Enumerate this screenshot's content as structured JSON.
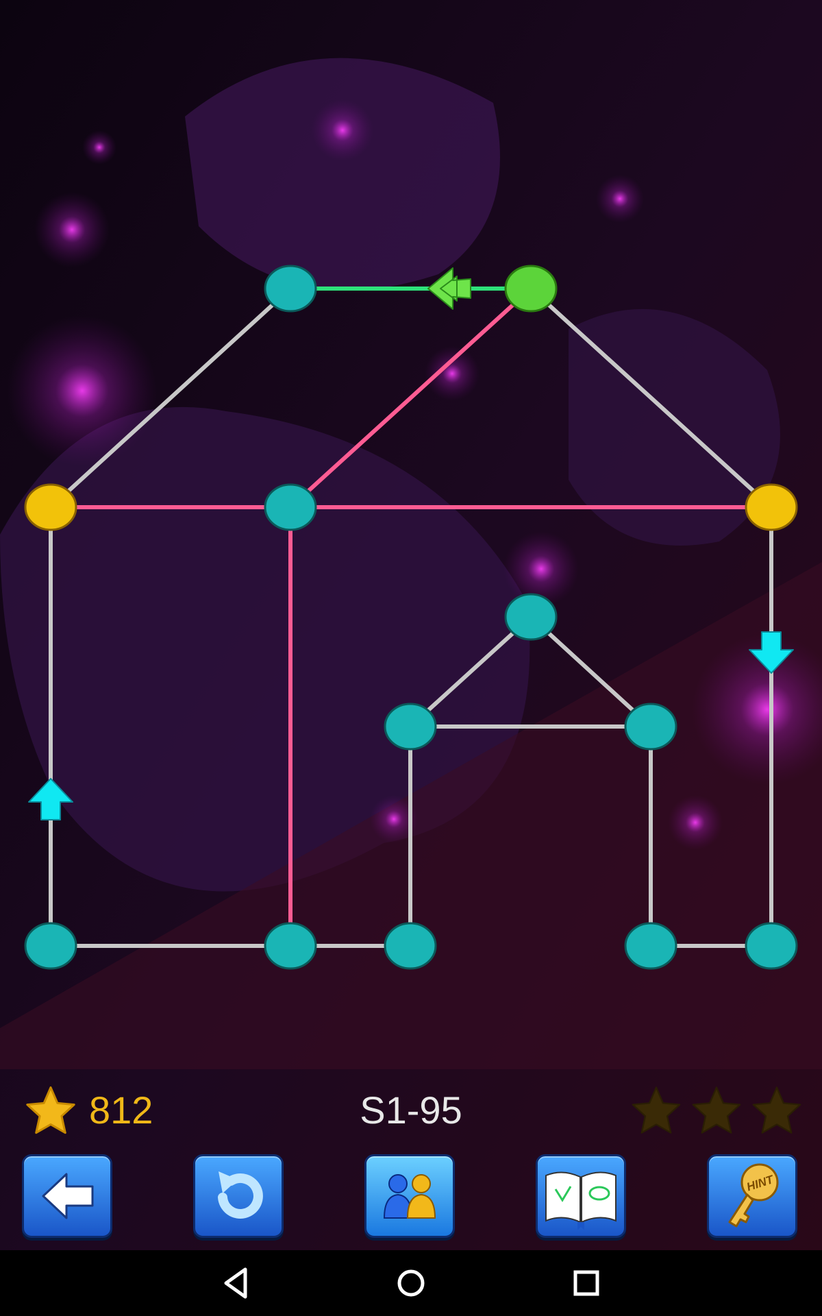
{
  "colors": {
    "node_default": "#1ab5b5",
    "node_yellow": "#f2c20a",
    "node_green": "#5cd43a",
    "edge_default": "#c8c8c8",
    "edge_pink": "#ff5c93",
    "edge_green": "#2ee27a",
    "arrow_cyan": "#10e8f2",
    "arrow_green": "#6ee44a",
    "star_gold": "#f2b81a",
    "star_empty": "#3a2a06"
  },
  "puzzle": {
    "nodes": [
      {
        "id": "n1",
        "color": "teal"
      },
      {
        "id": "n2",
        "color": "green"
      },
      {
        "id": "n3",
        "color": "yellow"
      },
      {
        "id": "n4",
        "color": "teal"
      },
      {
        "id": "n5",
        "color": "yellow"
      },
      {
        "id": "n6",
        "color": "teal"
      },
      {
        "id": "n7",
        "color": "teal"
      },
      {
        "id": "n8",
        "color": "teal"
      },
      {
        "id": "n9",
        "color": "teal"
      },
      {
        "id": "n10",
        "color": "teal"
      },
      {
        "id": "n11",
        "color": "teal"
      },
      {
        "id": "n12",
        "color": "teal"
      },
      {
        "id": "n13",
        "color": "teal"
      }
    ],
    "edges": [
      {
        "from": "n1",
        "to": "n2",
        "state": "green"
      },
      {
        "from": "n1",
        "to": "n3",
        "state": "default"
      },
      {
        "from": "n2",
        "to": "n4",
        "state": "pink"
      },
      {
        "from": "n2",
        "to": "n5",
        "state": "default"
      },
      {
        "from": "n3",
        "to": "n4",
        "state": "pink"
      },
      {
        "from": "n4",
        "to": "n5",
        "state": "pink"
      },
      {
        "from": "n3",
        "to": "n9",
        "state": "default"
      },
      {
        "from": "n4",
        "to": "n10",
        "state": "pink"
      },
      {
        "from": "n5",
        "to": "n13",
        "state": "default"
      },
      {
        "from": "n6",
        "to": "n7",
        "state": "default"
      },
      {
        "from": "n6",
        "to": "n8",
        "state": "default"
      },
      {
        "from": "n7",
        "to": "n8",
        "state": "default"
      },
      {
        "from": "n7",
        "to": "n11",
        "state": "default"
      },
      {
        "from": "n8",
        "to": "n12",
        "state": "default"
      },
      {
        "from": "n9",
        "to": "n10",
        "state": "default"
      },
      {
        "from": "n10",
        "to": "n11",
        "state": "default"
      },
      {
        "from": "n12",
        "to": "n13",
        "state": "default"
      }
    ],
    "arrows": [
      {
        "on_edge": "n1-n2",
        "direction": "left",
        "color": "green"
      },
      {
        "on_edge": "n5-n13",
        "direction": "down",
        "color": "cyan"
      },
      {
        "on_edge": "n3-n9",
        "direction": "up",
        "color": "cyan"
      }
    ]
  },
  "status": {
    "score": "812",
    "level": "S1-95",
    "stars_earned": 0,
    "stars_total": 3
  },
  "toolbar": {
    "buttons": [
      {
        "name": "back-button",
        "icon": "back-arrow-icon"
      },
      {
        "name": "undo-button",
        "icon": "undo-icon"
      },
      {
        "name": "multiplayer-button",
        "icon": "two-players-icon"
      },
      {
        "name": "guide-button",
        "icon": "open-book-icon"
      },
      {
        "name": "hint-button",
        "icon": "hint-key-icon",
        "icon_text": "HINT"
      }
    ]
  },
  "navbar": {
    "buttons": [
      "back-nav-icon",
      "home-nav-icon",
      "recents-nav-icon"
    ]
  }
}
